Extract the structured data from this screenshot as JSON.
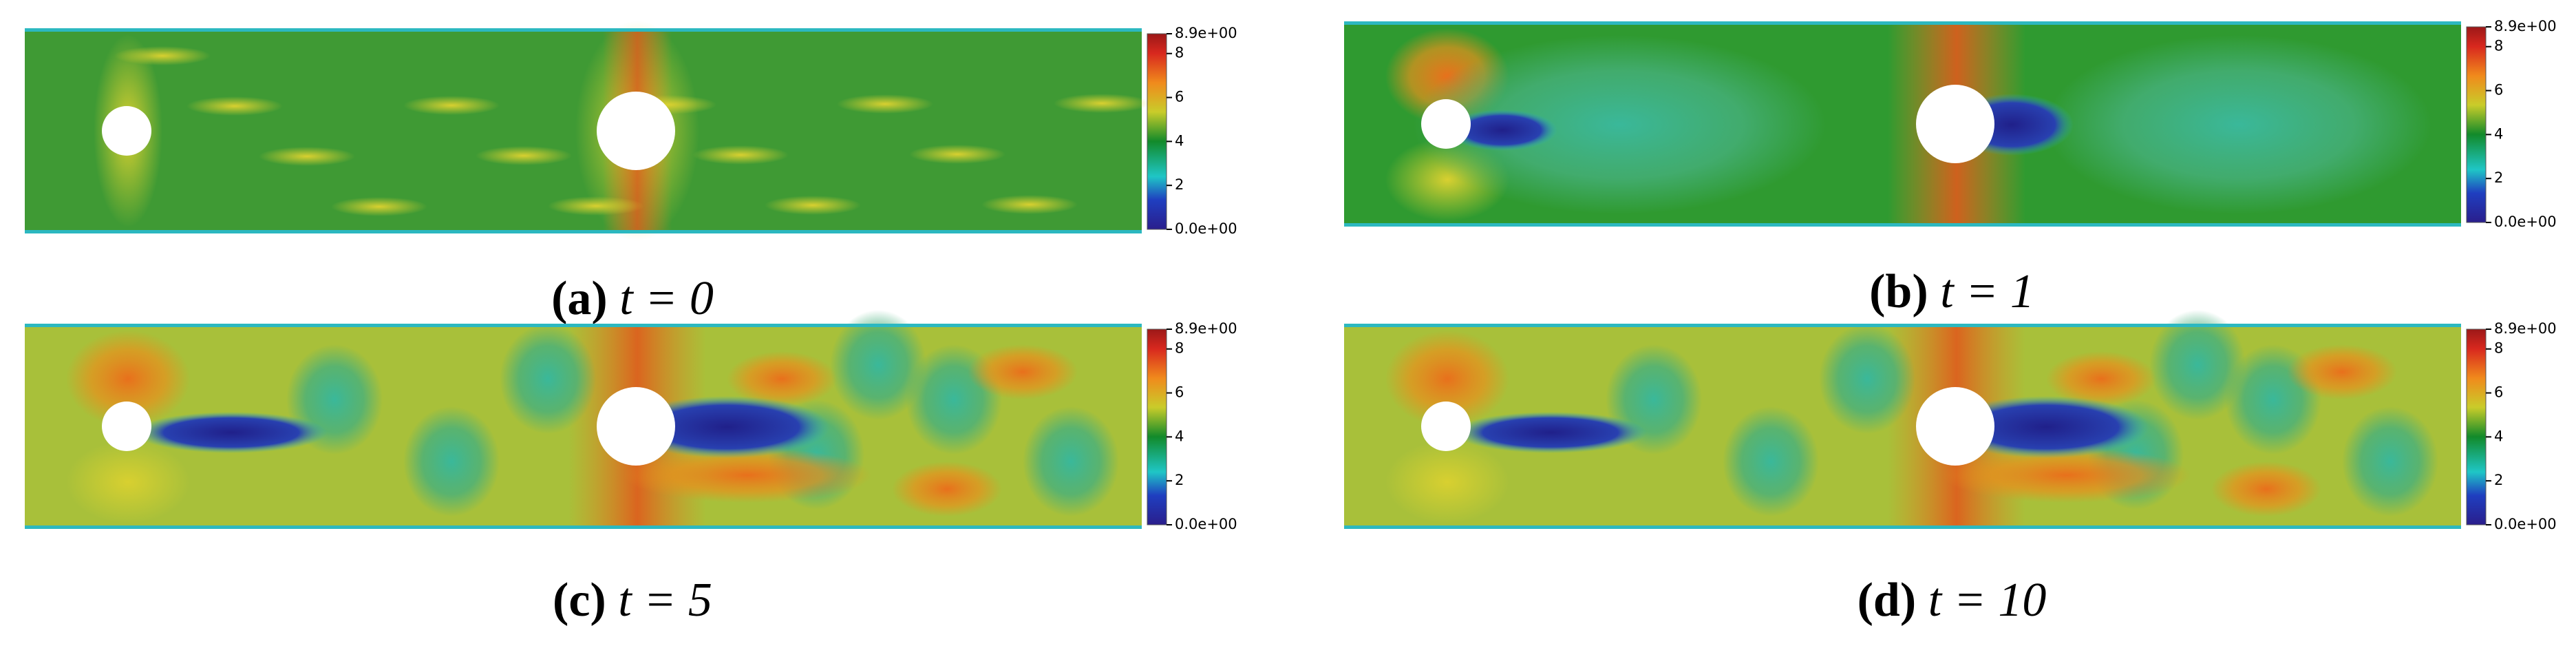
{
  "panels": [
    {
      "label": "(a)",
      "caption": "t = 0",
      "colorbar": {
        "lim": [
          0,
          8.9
        ],
        "ticks": [
          {
            "value": 8.9,
            "label": "8.9e+00"
          },
          8,
          6,
          4,
          2,
          {
            "value": 0,
            "label": "0.0e+00"
          }
        ]
      }
    },
    {
      "label": "(b)",
      "caption": "t = 1",
      "colorbar": {
        "lim": [
          0,
          8.9
        ],
        "ticks": [
          {
            "value": 8.9,
            "label": "8.9e+00"
          },
          8,
          6,
          4,
          2,
          {
            "value": 0,
            "label": "0.0e+00"
          }
        ]
      }
    },
    {
      "label": "(c)",
      "caption": "t = 5",
      "colorbar": {
        "lim": [
          0,
          8.9
        ],
        "ticks": [
          {
            "value": 8.9,
            "label": "8.9e+00"
          },
          8,
          6,
          4,
          2,
          {
            "value": 0,
            "label": "0.0e+00"
          }
        ]
      }
    },
    {
      "label": "(d)",
      "caption": "t = 10",
      "colorbar": {
        "lim": [
          0,
          8.9
        ],
        "ticks": [
          {
            "value": 8.9,
            "label": "8.9e+00"
          },
          8,
          6,
          4,
          2,
          {
            "value": 0,
            "label": "0.0e+00"
          }
        ]
      }
    }
  ]
}
